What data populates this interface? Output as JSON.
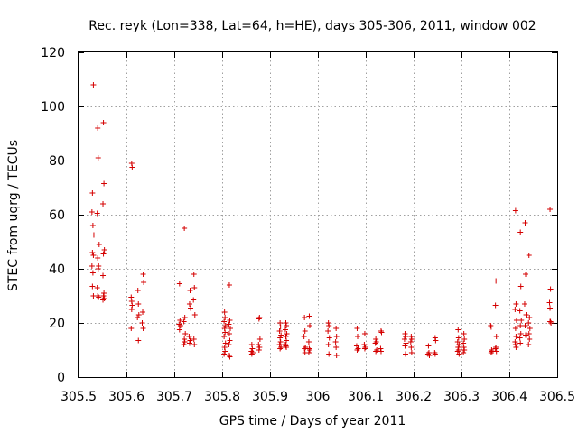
{
  "chart_data": {
    "type": "scatter",
    "title": "Rec. reyk (Lon=338, Lat=64, h=HE), days 305-306, 2011, window 002",
    "xlabel": "GPS time / Days of year 2011",
    "ylabel": "STEC from uqrg / TECUs",
    "xlim": [
      305.5,
      306.5
    ],
    "ylim": [
      0,
      120
    ],
    "xticks": [
      305.5,
      305.6,
      305.7,
      305.8,
      305.9,
      306,
      306.1,
      306.2,
      306.3,
      306.4,
      306.5
    ],
    "xtick_labels": [
      "305.5",
      "305.6",
      "305.7",
      "305.8",
      "305.9",
      "306",
      "306.1",
      "306.2",
      "306.3",
      "306.4",
      "306.5"
    ],
    "yticks": [
      0,
      20,
      40,
      60,
      80,
      100,
      120
    ],
    "ytick_labels": [
      "0",
      "20",
      "40",
      "60",
      "80",
      "100",
      "120"
    ],
    "grid": true,
    "marker": "+",
    "color": "#d40000",
    "series": [
      {
        "name": "STEC",
        "x": [
          305.531,
          305.529,
          305.528,
          305.53,
          305.532,
          305.529,
          305.531,
          305.528,
          305.53,
          305.529,
          305.531,
          305.54,
          305.541,
          305.539,
          305.543,
          305.54,
          305.542,
          305.541,
          305.539,
          305.54,
          305.542,
          305.552,
          305.553,
          305.551,
          305.554,
          305.552,
          305.551,
          305.553,
          305.552,
          305.554,
          305.551,
          305.611,
          305.612,
          305.61,
          305.611,
          305.612,
          305.611,
          305.61,
          305.624,
          305.625,
          305.626,
          305.623,
          305.625,
          305.635,
          305.636,
          305.634,
          305.633,
          305.635,
          305.711,
          305.712,
          305.71,
          305.713,
          305.711,
          305.721,
          305.722,
          305.72,
          305.723,
          305.721,
          305.722,
          305.72,
          305.733,
          305.732,
          305.734,
          305.731,
          305.733,
          305.732,
          305.741,
          305.742,
          305.74,
          305.743,
          305.741,
          305.742,
          305.805,
          305.806,
          305.804,
          305.807,
          305.805,
          305.806,
          305.804,
          305.807,
          305.805,
          305.806,
          305.804,
          305.815,
          305.816,
          305.814,
          305.817,
          305.815,
          305.816,
          305.814,
          305.815,
          305.816,
          305.862,
          305.863,
          305.861,
          305.864,
          305.862,
          305.878,
          305.877,
          305.879,
          305.876,
          305.878,
          305.877,
          305.921,
          305.922,
          305.92,
          305.923,
          305.921,
          305.922,
          305.92,
          305.923,
          305.921,
          305.933,
          305.934,
          305.932,
          305.935,
          305.933,
          305.934,
          305.932,
          305.933,
          305.934,
          305.972,
          305.973,
          305.971,
          305.974,
          305.972,
          305.973,
          305.982,
          305.983,
          305.981,
          305.982,
          305.983,
          305.981,
          306.022,
          306.023,
          306.021,
          306.024,
          306.022,
          306.023,
          306.038,
          306.039,
          306.037,
          306.038,
          306.039,
          306.082,
          306.083,
          306.081,
          306.084,
          306.082,
          306.098,
          306.097,
          306.099,
          306.098,
          306.121,
          306.122,
          306.12,
          306.123,
          306.121,
          306.132,
          306.133,
          306.131,
          306.132,
          306.182,
          306.183,
          306.181,
          306.184,
          306.182,
          306.183,
          306.195,
          306.196,
          306.194,
          306.195,
          306.196,
          306.231,
          306.232,
          306.23,
          306.233,
          306.245,
          306.246,
          306.244,
          306.245,
          306.293,
          306.294,
          306.292,
          306.295,
          306.293,
          306.294,
          306.292,
          306.295,
          306.305,
          306.306,
          306.304,
          306.305,
          306.306,
          306.304,
          306.361,
          306.362,
          306.363,
          306.364,
          306.362,
          306.372,
          306.371,
          306.373,
          306.372,
          306.371,
          306.373,
          306.413,
          306.414,
          306.412,
          306.415,
          306.413,
          306.414,
          306.412,
          306.413,
          306.414,
          306.423,
          306.424,
          306.422,
          306.425,
          306.423,
          306.424,
          306.422,
          306.423,
          306.433,
          306.434,
          306.432,
          306.435,
          306.433,
          306.434,
          306.441,
          306.442,
          306.44,
          306.443,
          306.441,
          306.442,
          306.44,
          306.485,
          306.486,
          306.484,
          306.485,
          306.486,
          306.487,
          306.485
        ],
        "y": [
          108,
          68,
          61,
          56,
          52.5,
          46,
          45,
          41,
          38.5,
          33.5,
          30,
          92,
          81,
          60.5,
          49,
          44,
          41,
          40,
          33,
          30,
          29.5,
          94,
          71.5,
          64,
          47,
          45.5,
          37.5,
          31,
          30,
          29,
          28.5,
          79,
          77.5,
          29.5,
          28,
          26.5,
          25,
          18,
          32,
          27,
          23,
          22,
          13.5,
          38,
          35,
          24,
          20,
          18,
          34.5,
          21,
          19.5,
          19,
          17.5,
          55,
          22,
          20.5,
          16,
          14,
          13,
          12,
          32,
          27,
          25.5,
          15,
          13.5,
          12.5,
          38,
          33,
          28.5,
          23,
          14,
          12,
          24,
          22,
          20.5,
          19,
          18,
          16.5,
          15,
          12.5,
          11,
          9.5,
          8.5,
          34,
          21,
          19.5,
          18,
          16,
          13.5,
          12,
          8,
          7.5,
          12,
          10.5,
          9.5,
          9,
          8.5,
          22,
          21.5,
          14,
          12,
          11,
          10,
          20,
          18.5,
          17,
          15.5,
          14.5,
          13,
          12,
          11,
          10.5,
          20,
          19,
          17.5,
          16,
          15,
          13.5,
          12,
          11.5,
          11,
          22,
          17,
          15,
          11,
          10.5,
          9,
          22.5,
          19,
          13,
          10.5,
          10,
          9,
          20,
          19,
          17,
          14.5,
          12,
          8.5,
          18,
          15,
          13,
          11,
          8,
          18,
          15,
          11.5,
          10.5,
          10,
          16,
          12,
          11,
          10.5,
          14,
          13,
          12.5,
          10,
          9.5,
          17,
          16.5,
          10.5,
          9.5,
          16,
          15,
          14,
          12.5,
          11.5,
          8.5,
          15,
          14,
          13,
          11,
          9,
          11.5,
          9,
          8.5,
          8,
          14.5,
          13.5,
          9,
          8.5,
          17.5,
          14.5,
          13,
          12,
          11,
          10,
          9.5,
          8.5,
          16,
          14,
          12.5,
          11,
          10,
          9,
          19,
          18.5,
          10,
          9.5,
          9,
          35.5,
          26.5,
          15,
          11,
          10.5,
          9.5,
          61.5,
          27,
          25,
          21,
          18,
          15,
          13,
          12,
          11,
          53.5,
          33.5,
          24.5,
          21,
          19,
          16,
          14.5,
          12.5,
          57,
          38,
          27,
          23,
          19,
          15.5,
          45,
          22,
          20,
          18,
          16,
          14,
          12,
          62,
          32.5,
          27.5,
          25.5,
          20.5,
          20,
          20.5
        ]
      }
    ]
  }
}
